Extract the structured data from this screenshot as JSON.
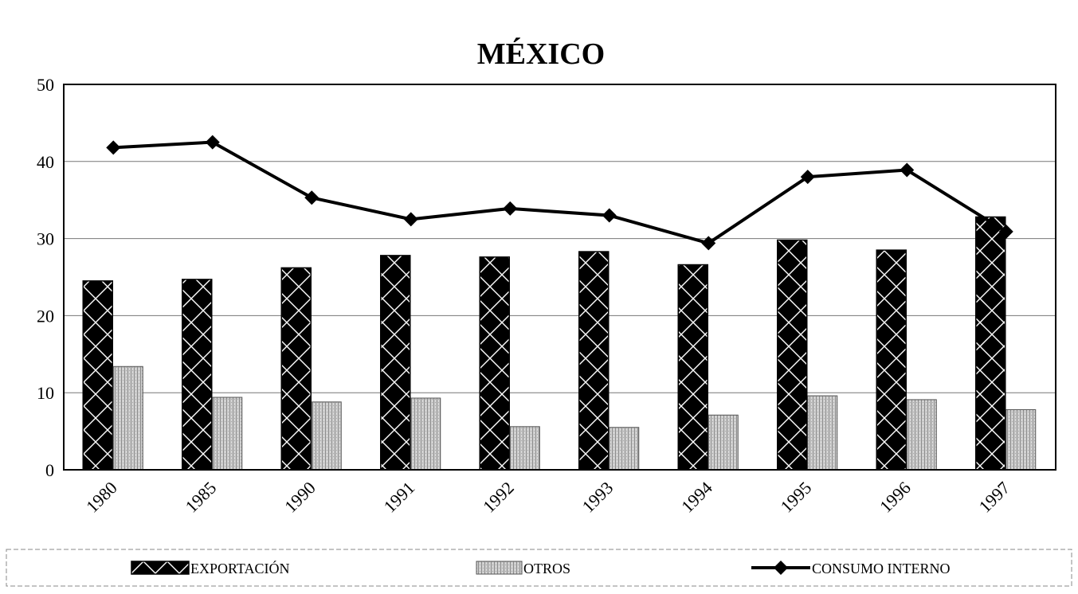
{
  "chart_data": {
    "type": "bar",
    "title": "MÉXICO",
    "xlabel": "",
    "ylabel": "",
    "ylim": [
      0,
      50
    ],
    "yticks": [
      0,
      10,
      20,
      30,
      40,
      50
    ],
    "categories": [
      "1980",
      "1985",
      "1990",
      "1991",
      "1992",
      "1993",
      "1994",
      "1995",
      "1996",
      "1997"
    ],
    "grid": true,
    "legend_position": "bottom",
    "series": [
      {
        "name": "EXPORTACIÓN",
        "kind": "bar",
        "pattern": "diamond-checker",
        "values": [
          24.5,
          24.7,
          26.2,
          27.8,
          27.6,
          28.3,
          26.6,
          29.8,
          28.5,
          32.8
        ]
      },
      {
        "name": "OTROS",
        "kind": "bar",
        "pattern": "fine-stipple",
        "values": [
          13.4,
          9.4,
          8.8,
          9.3,
          5.6,
          5.5,
          7.1,
          9.6,
          9.1,
          7.8
        ]
      },
      {
        "name": "CONSUMO INTERNO",
        "kind": "line",
        "marker": "diamond",
        "values": [
          41.8,
          42.5,
          35.3,
          32.5,
          33.9,
          33.0,
          29.4,
          38.0,
          38.9,
          30.9
        ]
      }
    ]
  }
}
